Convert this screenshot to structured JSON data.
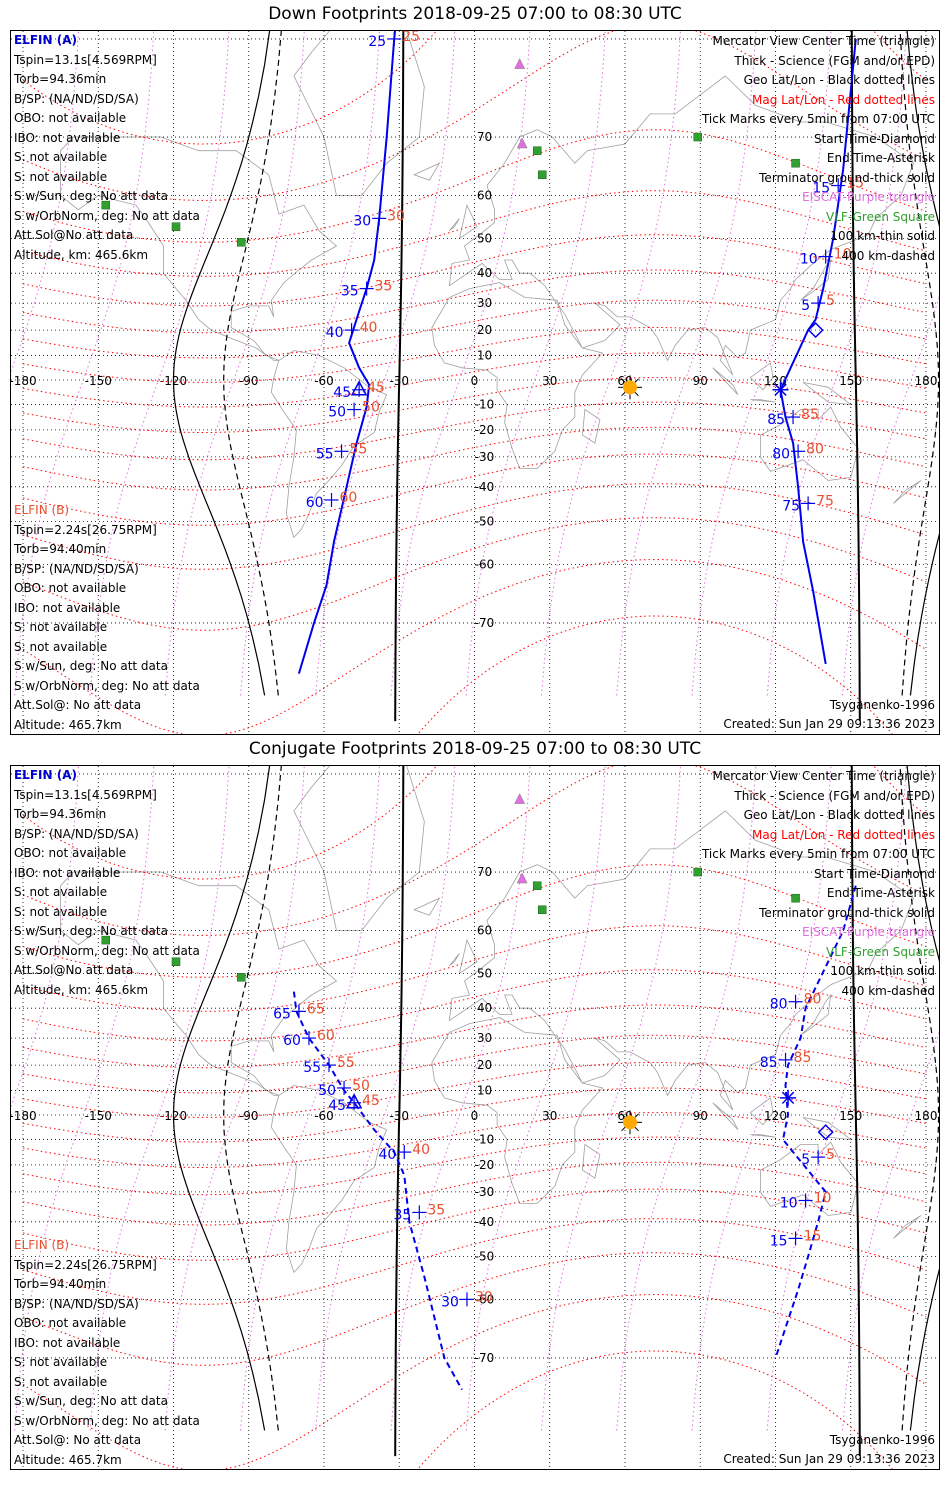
{
  "panels": [
    {
      "title": "Down Footprints 2018-09-25 07:00 to 08:30 UTC",
      "elfin_a": [
        "ELFIN (A)",
        "Tspin=13.1s[4.569RPM]",
        "Torb=94.36min",
        "B/SP: (NA/ND/SD/SA)",
        "OBO: not available",
        "IBO: not available",
        "S: not available",
        "S: not available",
        "S w/Sun, deg: No att data",
        "S w/OrbNorm, deg: No att data",
        "Att.Sol@No att data",
        "Altitude, km: 465.6km"
      ],
      "elfin_b": [
        "ELFIN (B)",
        "Tspin=2.24s[26.75RPM]",
        "Torb=94.40min",
        "B/SP: (NA/ND/SD/SA)",
        "OBO: not available",
        "IBO: not available",
        "S: not available",
        "S: not available",
        "S w/Sun, deg: No att data",
        "S w/OrbNorm, deg: No att data",
        "Att.Sol@: No att data",
        "Altitude: 465.7km"
      ],
      "legend": [
        {
          "text": "Mercator View Center Time (triangle)",
          "color": "#000000"
        },
        {
          "text": "Thick - Science (FGM and/or EPD)",
          "color": "#000000"
        },
        {
          "text": "Geo Lat/Lon - Black dotted lines",
          "color": "#000000"
        },
        {
          "text": "Mag Lat/Lon - Red dotted lines",
          "color": "#ff0000"
        },
        {
          "text": "Tick Marks every 5min from 07:00 UTC",
          "color": "#000000"
        },
        {
          "text": "Start Time-Diamond",
          "color": "#000000"
        },
        {
          "text": "End Time-Asterisk",
          "color": "#000000"
        },
        {
          "text": "Terminator ground-thick solid",
          "color": "#000000"
        },
        {
          "text": "EISCAT-Purple triangle",
          "color": "#e070e0"
        },
        {
          "text": "VLF-Green Square",
          "color": "#30a030"
        },
        {
          "text": "100 km-thin solid",
          "color": "#000000"
        },
        {
          "text": "400 km-dashed",
          "color": "#000000"
        }
      ],
      "model": "Tsyganenko-1996",
      "created": "Created: Sun Jan 29 09:13:36 2023",
      "track_a": [
        [
          -30,
          83
        ],
        [
          -32,
          80
        ],
        [
          -35,
          70
        ],
        [
          -38,
          55
        ],
        [
          -40,
          44
        ],
        [
          -43,
          35
        ],
        [
          -46,
          27
        ],
        [
          -50,
          15
        ],
        [
          -46,
          5
        ],
        [
          -42,
          -2
        ],
        [
          -43,
          -11
        ],
        [
          -47,
          -25
        ],
        [
          -51,
          -40
        ],
        [
          -56,
          -55
        ],
        [
          -59,
          -64
        ],
        [
          -64,
          -70
        ],
        [
          -70,
          -76
        ]
      ],
      "track_b": [
        [
          152,
          80
        ],
        [
          147,
          65
        ],
        [
          143,
          50
        ],
        [
          139,
          35
        ],
        [
          136,
          24
        ],
        [
          133,
          20
        ],
        [
          122,
          -4
        ],
        [
          124,
          -15
        ],
        [
          127,
          -25
        ],
        [
          129,
          -40
        ],
        [
          131,
          -55
        ],
        [
          135,
          -65
        ],
        [
          140,
          -75
        ]
      ],
      "ticks_a": [
        {
          "label": "25",
          "lon": -32,
          "lat": 80
        },
        {
          "label": "30",
          "lon": -38,
          "lat": 55
        },
        {
          "label": "35",
          "lon": -43,
          "lat": 35
        },
        {
          "label": "40",
          "lon": -49,
          "lat": 20
        },
        {
          "label": "45",
          "lon": -46,
          "lat": -4
        },
        {
          "label": "50",
          "lon": -48,
          "lat": -12
        },
        {
          "label": "55",
          "lon": -53,
          "lat": -28
        },
        {
          "label": "60",
          "lon": -57,
          "lat": -44
        }
      ],
      "ticks_b": [
        {
          "label": "15",
          "lon": 145,
          "lat": 62
        },
        {
          "label": "10",
          "lon": 140,
          "lat": 45
        },
        {
          "label": "5",
          "lon": 137,
          "lat": 30
        },
        {
          "label": "85",
          "lon": 127,
          "lat": -15
        },
        {
          "label": "80",
          "lon": 129,
          "lat": -28
        },
        {
          "label": "75",
          "lon": 133,
          "lat": -45
        }
      ],
      "start_marker": {
        "lon": 136,
        "lat": 20
      },
      "end_marker": {
        "lon": 122,
        "lat": -4
      },
      "center_triangle": {
        "lon": -46,
        "lat": -4
      }
    },
    {
      "title": "Conjugate Footprints 2018-09-25 07:00 to 08:30 UTC",
      "elfin_a": [
        "ELFIN (A)",
        "Tspin=13.1s[4.569RPM]",
        "Torb=94.36min",
        "B/SP: (NA/ND/SD/SA)",
        "OBO: not available",
        "IBO: not available",
        "S: not available",
        "S: not available",
        "S w/Sun, deg: No att data",
        "S w/OrbNorm, deg: No att data",
        "Att.Sol@No att data",
        "Altitude, km: 465.6km"
      ],
      "elfin_b": [
        "ELFIN (B)",
        "Tspin=2.24s[26.75RPM]",
        "Torb=94.40min",
        "B/SP: (NA/ND/SD/SA)",
        "OBO: not available",
        "IBO: not available",
        "S: not available",
        "S: not available",
        "S w/Sun, deg: No att data",
        "S w/OrbNorm, deg: No att data",
        "Att.Sol@: No att data",
        "Altitude: 465.7km"
      ],
      "legend": [
        {
          "text": "Mercator View Center Time (triangle)",
          "color": "#000000"
        },
        {
          "text": "Thick - Science (FGM and/or EPD)",
          "color": "#000000"
        },
        {
          "text": "Geo Lat/Lon - Black dotted lines",
          "color": "#000000"
        },
        {
          "text": "Mag Lat/Lon - Red dotted lines",
          "color": "#ff0000"
        },
        {
          "text": "Tick Marks every 5min from 07:00 UTC",
          "color": "#000000"
        },
        {
          "text": "Start Time-Diamond",
          "color": "#000000"
        },
        {
          "text": "End Time-Asterisk",
          "color": "#000000"
        },
        {
          "text": "Terminator ground-thick solid",
          "color": "#000000"
        },
        {
          "text": "EISCAT-Purple triangle",
          "color": "#e070e0"
        },
        {
          "text": "VLF-Green Square",
          "color": "#30a030"
        },
        {
          "text": "100 km-thin solid",
          "color": "#000000"
        },
        {
          "text": "400 km-dashed",
          "color": "#000000"
        }
      ],
      "model": "Tsyganenko-1996",
      "created": "Created: Sun Jan 29 09:13:36 2023",
      "track_a": [
        [
          -72,
          45
        ],
        [
          -71,
          39
        ],
        [
          -66,
          30
        ],
        [
          -58,
          20
        ],
        [
          -52,
          10
        ],
        [
          -48,
          5
        ],
        [
          -40,
          -6
        ],
        [
          -32,
          -15
        ],
        [
          -28,
          -24
        ],
        [
          -26,
          -40
        ],
        [
          -20,
          -55
        ],
        [
          -12,
          -70
        ],
        [
          -5,
          -74
        ]
      ],
      "track_b": [
        [
          152,
          68
        ],
        [
          147,
          60
        ],
        [
          132,
          40
        ],
        [
          130,
          30
        ],
        [
          125,
          20
        ],
        [
          124,
          12
        ],
        [
          125,
          0
        ],
        [
          123,
          -10
        ],
        [
          140,
          -30
        ],
        [
          137,
          -40
        ],
        [
          133,
          -50
        ],
        [
          129,
          -58
        ],
        [
          120,
          -70
        ]
      ],
      "ticks_a": [
        {
          "label": "65",
          "lon": -70,
          "lat": 39
        },
        {
          "label": "60",
          "lon": -66,
          "lat": 30
        },
        {
          "label": "55",
          "lon": -58,
          "lat": 20
        },
        {
          "label": "50",
          "lon": -52,
          "lat": 11
        },
        {
          "label": "45",
          "lon": -48,
          "lat": 5
        },
        {
          "label": "40",
          "lon": -28,
          "lat": -15
        },
        {
          "label": "35",
          "lon": -22,
          "lat": -37
        },
        {
          "label": "30",
          "lon": -3,
          "lat": -60
        }
      ],
      "ticks_b": [
        {
          "label": "80",
          "lon": 128,
          "lat": 42
        },
        {
          "label": "85",
          "lon": 124,
          "lat": 22
        },
        {
          "label": "5",
          "lon": 137,
          "lat": -17
        },
        {
          "label": "10",
          "lon": 132,
          "lat": -33
        },
        {
          "label": "15",
          "lon": 128,
          "lat": -45
        }
      ],
      "start_marker": {
        "lon": 140,
        "lat": -7
      },
      "end_marker": {
        "lon": 125,
        "lat": 7
      },
      "center_triangle": {
        "lon": -48,
        "lat": 5
      }
    }
  ],
  "stations": {
    "eiscat": [
      [
        18,
        78
      ],
      [
        19,
        69
      ]
    ],
    "vlf": [
      [
        -147,
        58
      ],
      [
        -119,
        53
      ],
      [
        -93,
        49
      ],
      [
        25,
        68
      ],
      [
        27,
        64
      ],
      [
        89,
        70
      ],
      [
        128,
        66
      ]
    ]
  },
  "sun": {
    "lon": 62,
    "lat": -3
  },
  "colors": {
    "track_a": "#0000ee",
    "track_b_label": "#e85030",
    "mag_grid": "#ff0000",
    "geo_grid": "#000000",
    "eiscat": "#e070e0",
    "vlf": "#30a030",
    "sun": "#ffaa00",
    "coast": "#a0a0a0"
  }
}
